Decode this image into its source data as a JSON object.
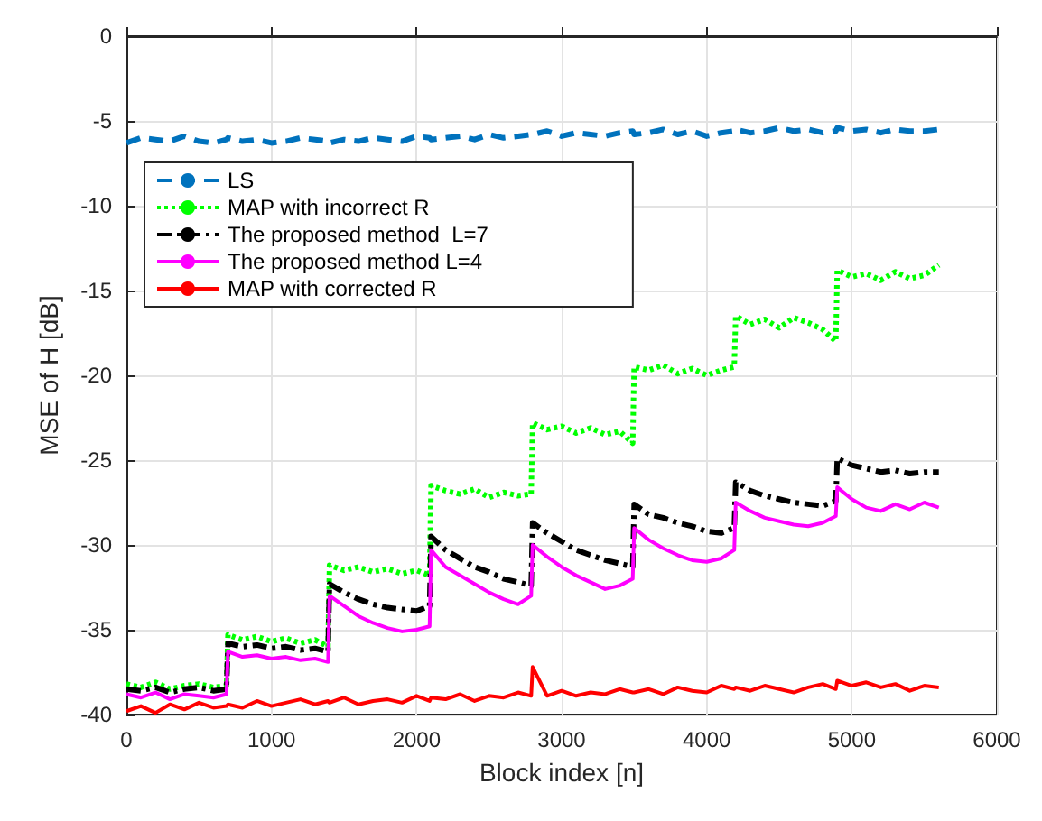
{
  "chart_data": {
    "type": "line",
    "xlabel": "Block index [n]",
    "ylabel": "MSE of H [dB]",
    "xlim": [
      0,
      6000
    ],
    "ylim": [
      -40,
      0
    ],
    "xticks": [
      0,
      1000,
      2000,
      3000,
      4000,
      5000,
      6000
    ],
    "yticks": [
      -40,
      -35,
      -30,
      -25,
      -20,
      -15,
      -10,
      -5,
      0
    ],
    "grid": true,
    "legend": "top left",
    "marker": "none",
    "x": [
      0,
      100,
      200,
      300,
      400,
      500,
      600,
      690,
      700,
      800,
      900,
      1000,
      1100,
      1200,
      1300,
      1390,
      1400,
      1500,
      1600,
      1700,
      1800,
      1900,
      2000,
      2090,
      2100,
      2200,
      2300,
      2400,
      2500,
      2600,
      2700,
      2790,
      2800,
      2900,
      3000,
      3100,
      3200,
      3300,
      3400,
      3490,
      3500,
      3600,
      3700,
      3800,
      3900,
      4000,
      4100,
      4190,
      4200,
      4300,
      4400,
      4500,
      4600,
      4700,
      4800,
      4890,
      4900,
      5000,
      5100,
      5200,
      5300,
      5400,
      5500,
      5600
    ],
    "series": [
      {
        "name": "LS",
        "color": "#0072bd",
        "line_style": "dashed",
        "values": [
          -6.3,
          -6.0,
          -6.1,
          -6.2,
          -5.9,
          -6.2,
          -6.3,
          -6.1,
          -6.0,
          -6.2,
          -6.1,
          -6.3,
          -6.2,
          -6.0,
          -6.1,
          -6.2,
          -6.3,
          -6.1,
          -6.2,
          -6.0,
          -6.1,
          -6.2,
          -5.9,
          -6.0,
          -6.1,
          -6.0,
          -5.9,
          -6.1,
          -5.8,
          -6.0,
          -5.9,
          -5.8,
          -5.8,
          -5.6,
          -5.9,
          -5.7,
          -5.8,
          -5.9,
          -5.7,
          -5.6,
          -5.8,
          -5.7,
          -5.5,
          -5.8,
          -5.6,
          -5.9,
          -5.7,
          -5.6,
          -5.5,
          -5.7,
          -5.6,
          -5.4,
          -5.6,
          -5.5,
          -5.7,
          -5.6,
          -5.4,
          -5.6,
          -5.5,
          -5.7,
          -5.5,
          -5.6,
          -5.6,
          -5.5
        ]
      },
      {
        "name": "MAP with incorrect R",
        "color": "#00ff00",
        "line_style": "dotted",
        "values": [
          -38.2,
          -38.4,
          -38.1,
          -38.5,
          -38.3,
          -38.2,
          -38.4,
          -38.3,
          -35.3,
          -35.6,
          -35.4,
          -35.7,
          -35.5,
          -35.8,
          -35.6,
          -36.0,
          -31.2,
          -31.5,
          -31.3,
          -31.6,
          -31.4,
          -31.7,
          -31.5,
          -31.8,
          -26.5,
          -26.8,
          -27.0,
          -26.7,
          -27.2,
          -26.9,
          -27.1,
          -27.0,
          -22.8,
          -23.2,
          -23.0,
          -23.4,
          -23.1,
          -23.5,
          -23.3,
          -24.0,
          -19.5,
          -19.7,
          -19.4,
          -19.9,
          -19.6,
          -20.0,
          -19.7,
          -19.5,
          -16.5,
          -17.0,
          -16.7,
          -17.2,
          -16.6,
          -16.9,
          -17.3,
          -18.0,
          -13.8,
          -14.2,
          -14.0,
          -14.4,
          -13.9,
          -14.3,
          -14.1,
          -13.5
        ]
      },
      {
        "name": "The proposed method  L=7",
        "color": "#000000",
        "line_style": "dashdot",
        "values": [
          -38.5,
          -38.6,
          -38.4,
          -38.7,
          -38.5,
          -38.4,
          -38.6,
          -38.5,
          -35.8,
          -36.0,
          -35.9,
          -36.1,
          -36.0,
          -36.2,
          -36.1,
          -36.3,
          -32.3,
          -32.8,
          -33.2,
          -33.5,
          -33.7,
          -33.8,
          -33.9,
          -33.6,
          -29.5,
          -30.3,
          -30.8,
          -31.3,
          -31.6,
          -32.0,
          -32.2,
          -32.4,
          -28.7,
          -29.3,
          -29.8,
          -30.3,
          -30.6,
          -30.9,
          -31.1,
          -31.3,
          -27.6,
          -28.2,
          -28.4,
          -28.7,
          -28.9,
          -29.2,
          -29.3,
          -29.0,
          -26.3,
          -26.8,
          -27.1,
          -27.3,
          -27.5,
          -27.6,
          -27.7,
          -27.4,
          -24.9,
          -25.3,
          -25.5,
          -25.7,
          -25.6,
          -25.8,
          -25.7,
          -25.7
        ]
      },
      {
        "name": "The proposed method L=4",
        "color": "#ff00ff",
        "line_style": "solid",
        "values": [
          -38.8,
          -39.0,
          -38.7,
          -39.1,
          -38.8,
          -38.9,
          -39.0,
          -38.8,
          -36.3,
          -36.6,
          -36.5,
          -36.7,
          -36.6,
          -36.8,
          -36.7,
          -36.9,
          -33.0,
          -33.6,
          -34.2,
          -34.6,
          -34.9,
          -35.1,
          -35.0,
          -34.8,
          -30.3,
          -31.3,
          -31.8,
          -32.3,
          -32.8,
          -33.2,
          -33.5,
          -33.0,
          -30.0,
          -30.7,
          -31.3,
          -31.8,
          -32.2,
          -32.6,
          -32.4,
          -32.0,
          -29.0,
          -29.7,
          -30.2,
          -30.6,
          -30.9,
          -31.0,
          -30.8,
          -30.3,
          -27.5,
          -28.0,
          -28.4,
          -28.6,
          -28.8,
          -28.9,
          -28.7,
          -28.3,
          -26.6,
          -27.3,
          -27.8,
          -28.0,
          -27.6,
          -27.9,
          -27.5,
          -27.8
        ]
      },
      {
        "name": "MAP with corrected R",
        "color": "#ff0000",
        "line_style": "solid",
        "values": [
          -39.8,
          -39.5,
          -39.9,
          -39.4,
          -39.7,
          -39.3,
          -39.6,
          -39.5,
          -39.4,
          -39.6,
          -39.2,
          -39.5,
          -39.3,
          -39.1,
          -39.4,
          -39.2,
          -39.3,
          -39.0,
          -39.4,
          -39.2,
          -39.1,
          -39.3,
          -38.9,
          -39.2,
          -39.0,
          -39.1,
          -38.8,
          -39.2,
          -38.9,
          -39.0,
          -38.7,
          -38.9,
          -37.2,
          -38.9,
          -38.6,
          -38.9,
          -38.7,
          -38.8,
          -38.5,
          -38.7,
          -38.7,
          -38.5,
          -38.8,
          -38.4,
          -38.6,
          -38.7,
          -38.3,
          -38.5,
          -38.4,
          -38.6,
          -38.3,
          -38.5,
          -38.7,
          -38.4,
          -38.2,
          -38.5,
          -38.0,
          -38.3,
          -38.1,
          -38.4,
          -38.2,
          -38.6,
          -38.3,
          -38.4
        ]
      }
    ]
  }
}
